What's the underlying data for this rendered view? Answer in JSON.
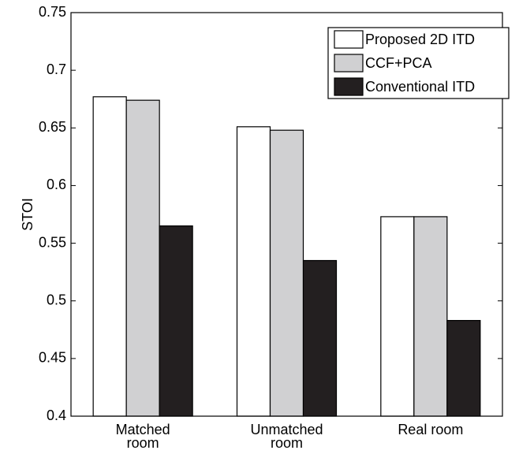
{
  "chart_data": {
    "type": "bar",
    "ylabel": "STOI",
    "categories": [
      "Matched room",
      "Unmatched room",
      "Real room"
    ],
    "series": [
      {
        "name": "Proposed 2D ITD",
        "color": "#ffffff",
        "values": [
          0.677,
          0.651,
          0.573
        ]
      },
      {
        "name": "CCF+PCA",
        "color": "#d0d0d2",
        "values": [
          0.674,
          0.648,
          0.573
        ]
      },
      {
        "name": "Conventional ITD",
        "color": "#231f20",
        "values": [
          0.565,
          0.535,
          0.483
        ]
      }
    ],
    "ylim": [
      0.4,
      0.75
    ],
    "yticks": [
      0.4,
      0.45,
      0.5,
      0.55,
      0.6,
      0.65,
      0.7,
      0.75
    ],
    "legend": "upper right"
  }
}
